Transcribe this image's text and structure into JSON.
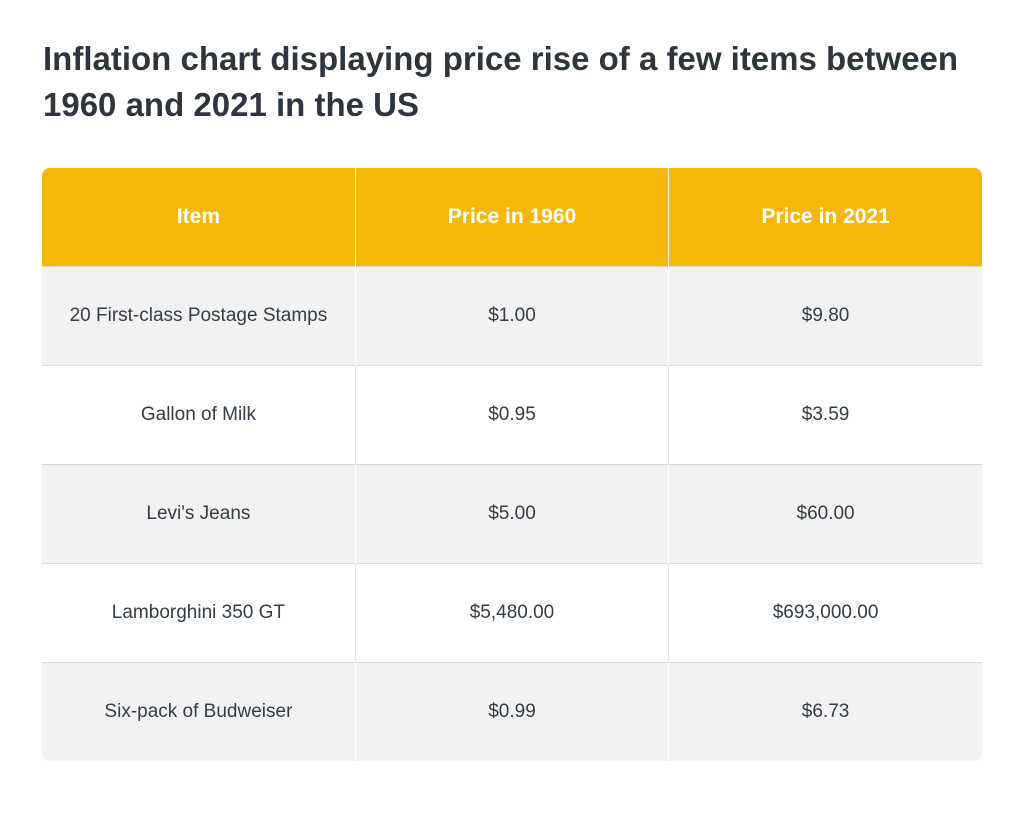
{
  "title": "Inflation chart displaying price rise of a few items between 1960 and 2021 in the US",
  "chart_data": {
    "type": "table",
    "title": "Inflation chart displaying price rise of a few items between 1960 and 2021 in the US",
    "columns": [
      "Item",
      "Price in 1960",
      "Price in 2021"
    ],
    "rows": [
      [
        "20 First-class Postage Stamps",
        "$1.00",
        "$9.80"
      ],
      [
        "Gallon of Milk",
        "$0.95",
        "$3.59"
      ],
      [
        "Levi's Jeans",
        "$5.00",
        "$60.00"
      ],
      [
        "Lamborghini 350 GT",
        "$5,480.00",
        "$693,000.00"
      ],
      [
        "Six-pack of Budweiser",
        "$0.99",
        "$6.73"
      ]
    ]
  },
  "colors": {
    "header_background": "#f5b709",
    "header_text": "#ffffff",
    "row_shaded": "#f2f2f2",
    "row_plain": "#ffffff",
    "title_text": "#2b3640"
  }
}
